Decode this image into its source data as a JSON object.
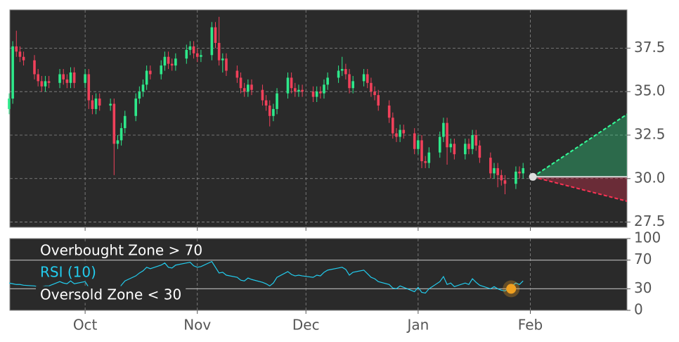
{
  "chart_data": [
    {
      "type": "candlestick",
      "x": [
        -21,
        -20,
        -19,
        -18,
        -17,
        -14,
        -13,
        -12,
        -11,
        -10,
        -7,
        -6,
        -5,
        -4,
        -3,
        0,
        1,
        2,
        3,
        4,
        7,
        8,
        9,
        10,
        11,
        14,
        15,
        16,
        17,
        18,
        21,
        22,
        23,
        24,
        25,
        28,
        29,
        30,
        31,
        32,
        35,
        36,
        37,
        38,
        39,
        42,
        43,
        44,
        45,
        46,
        49,
        50,
        51,
        52,
        53,
        56,
        57,
        58,
        59,
        60,
        63,
        64,
        65,
        66,
        67,
        70,
        71,
        72,
        73,
        74,
        77,
        78,
        79,
        80,
        81,
        84,
        85,
        86,
        87,
        88,
        91,
        92,
        93,
        94,
        95,
        98,
        99,
        100,
        101,
        102,
        105,
        106,
        107,
        108,
        109,
        112,
        113,
        114,
        115,
        116,
        119,
        120,
        121
      ],
      "open": [
        34.0,
        34.6,
        37.6,
        37.3,
        37.0,
        36.8,
        36.0,
        35.6,
        35.3,
        35.6,
        35.5,
        36.0,
        35.7,
        35.5,
        36.1,
        35.5,
        36.0,
        34.5,
        34.0,
        34.6,
        34.2,
        34.3,
        32.0,
        32.2,
        32.9,
        33.6,
        34.6,
        35.0,
        35.4,
        36.2,
        36.0,
        36.5,
        37.0,
        36.6,
        36.5,
        36.9,
        37.4,
        37.6,
        37.2,
        37.0,
        37.1,
        38.7,
        37.8,
        36.8,
        36.9,
        36.2,
        35.8,
        35.2,
        35.0,
        35.4,
        35.1,
        34.5,
        34.2,
        33.6,
        34.0,
        34.9,
        35.8,
        35.2,
        35.0,
        35.1,
        35.0,
        34.7,
        35.0,
        34.9,
        35.4,
        35.8,
        36.2,
        36.3,
        36.0,
        35.2,
        35.6,
        36.0,
        35.5,
        35.0,
        34.8,
        34.2,
        33.5,
        32.6,
        32.4,
        32.8,
        32.6,
        31.7,
        32.2,
        31.0,
        30.9,
        31.5,
        32.4,
        33.2,
        31.8,
        32.0,
        31.4,
        32.0,
        31.7,
        32.5,
        31.9,
        31.2,
        30.3,
        30.6,
        30.2,
        29.9,
        29.7,
        30.4,
        30.3
      ],
      "high": [
        34.9,
        37.9,
        38.5,
        37.6,
        37.3,
        37.1,
        36.3,
        35.9,
        35.9,
        35.9,
        36.3,
        36.3,
        36.0,
        36.4,
        36.4,
        36.3,
        36.3,
        34.8,
        34.9,
        34.9,
        34.6,
        34.6,
        32.5,
        33.2,
        33.9,
        34.9,
        35.3,
        35.7,
        36.5,
        36.5,
        36.8,
        37.3,
        37.3,
        36.9,
        37.2,
        37.7,
        37.9,
        37.9,
        37.5,
        37.4,
        39.0,
        39.0,
        39.3,
        37.2,
        37.2,
        36.5,
        36.1,
        35.5,
        35.7,
        35.7,
        35.4,
        34.8,
        34.5,
        34.3,
        35.2,
        36.1,
        36.1,
        35.5,
        35.4,
        35.4,
        35.3,
        35.3,
        35.3,
        35.7,
        36.1,
        36.5,
        37.0,
        36.6,
        36.3,
        35.9,
        36.3,
        36.3,
        35.8,
        35.3,
        35.1,
        34.5,
        33.8,
        32.9,
        33.1,
        33.1,
        32.9,
        32.5,
        32.5,
        31.3,
        31.8,
        32.7,
        33.5,
        33.5,
        32.3,
        32.3,
        32.3,
        32.3,
        32.8,
        32.8,
        32.2,
        31.5,
        30.9,
        30.9,
        30.5,
        30.2,
        30.7,
        30.7,
        30.9
      ],
      "low": [
        33.7,
        34.3,
        37.0,
        36.7,
        36.5,
        35.7,
        35.3,
        35.0,
        35.0,
        35.2,
        35.2,
        35.4,
        35.2,
        35.2,
        35.2,
        35.2,
        34.0,
        33.7,
        33.7,
        33.9,
        33.9,
        30.2,
        31.7,
        31.9,
        32.6,
        33.3,
        34.3,
        34.7,
        35.1,
        35.7,
        35.7,
        36.2,
        36.3,
        36.2,
        36.2,
        36.6,
        37.1,
        36.9,
        36.7,
        36.7,
        36.8,
        37.5,
        36.5,
        36.1,
        35.9,
        35.5,
        34.9,
        34.7,
        34.7,
        34.8,
        34.2,
        33.9,
        33.0,
        33.3,
        33.7,
        34.6,
        34.9,
        34.7,
        34.7,
        34.7,
        34.4,
        34.4,
        34.6,
        34.6,
        35.1,
        35.5,
        35.9,
        35.7,
        34.9,
        34.9,
        35.3,
        35.2,
        34.7,
        34.5,
        33.9,
        33.2,
        32.3,
        32.1,
        32.1,
        32.3,
        31.4,
        31.4,
        30.6,
        30.6,
        30.6,
        31.2,
        32.1,
        30.8,
        31.5,
        31.1,
        31.1,
        31.4,
        31.4,
        31.6,
        30.9,
        30.0,
        30.0,
        29.5,
        29.6,
        29.1,
        29.4,
        30.0,
        30.0
      ],
      "close": [
        34.6,
        37.6,
        37.3,
        37.0,
        36.8,
        36.0,
        35.6,
        35.3,
        35.6,
        35.5,
        36.0,
        35.7,
        35.5,
        36.1,
        35.5,
        36.0,
        34.5,
        34.0,
        34.6,
        34.2,
        34.3,
        32.0,
        32.2,
        32.9,
        33.6,
        34.6,
        35.0,
        35.4,
        36.2,
        36.0,
        36.5,
        37.0,
        36.6,
        36.5,
        36.9,
        37.4,
        37.6,
        37.2,
        37.0,
        37.1,
        38.7,
        37.8,
        36.8,
        36.9,
        36.2,
        35.8,
        35.2,
        35.0,
        35.4,
        35.1,
        34.5,
        34.2,
        33.6,
        34.0,
        34.9,
        35.8,
        35.2,
        35.0,
        35.1,
        35.0,
        34.7,
        35.0,
        34.9,
        35.4,
        35.8,
        36.2,
        36.3,
        36.0,
        35.2,
        35.6,
        36.0,
        35.5,
        35.0,
        34.8,
        34.2,
        33.5,
        32.6,
        32.4,
        32.8,
        32.6,
        31.7,
        32.2,
        31.0,
        30.9,
        31.5,
        32.4,
        33.2,
        31.8,
        32.0,
        31.4,
        32.0,
        31.7,
        32.5,
        31.9,
        31.2,
        30.3,
        30.6,
        30.2,
        29.9,
        29.7,
        30.4,
        30.3,
        30.6
      ],
      "up_color": "#2ee88a",
      "down_color": "#f0405a",
      "projection": {
        "x": [
          123.7,
          149.7
        ],
        "upper": [
          30.1,
          33.7
        ],
        "middle": [
          30.1,
          30.1
        ],
        "lower": [
          30.1,
          28.7
        ],
        "upper_color": "#33ff99",
        "lower_color": "#ff3355",
        "point_color": "#dddddd"
      },
      "xlim": [
        -20.8,
        149.7
      ],
      "xticks": [
        0,
        31,
        61,
        92,
        123
      ],
      "ylim": [
        27.2,
        39.7
      ],
      "yticks": [
        27.5,
        {
          "value": 30,
          "label": "30.0"
        },
        32.5,
        {
          "value": 35,
          "label": "35.0"
        },
        37.5
      ],
      "grid": true
    },
    {
      "type": "line",
      "x": [
        -21,
        -20,
        -19,
        -18,
        -17,
        -14,
        -13,
        -12,
        -11,
        -10,
        -7,
        -6,
        -5,
        -4,
        -3,
        0,
        1,
        2,
        3,
        4,
        7,
        8,
        9,
        10,
        11,
        14,
        15,
        16,
        17,
        18,
        21,
        22,
        23,
        24,
        25,
        28,
        29,
        30,
        31,
        32,
        35,
        36,
        37,
        38,
        39,
        42,
        43,
        44,
        45,
        46,
        49,
        50,
        51,
        52,
        53,
        56,
        57,
        58,
        59,
        60,
        63,
        64,
        65,
        66,
        67,
        70,
        71,
        72,
        73,
        74,
        77,
        78,
        79,
        80,
        81,
        84,
        85,
        86,
        87,
        88,
        91,
        92,
        93,
        94,
        95,
        98,
        99,
        100,
        101,
        102,
        105,
        106,
        107,
        108,
        109,
        112,
        113,
        114,
        115,
        116,
        119,
        120,
        121
      ],
      "series": [
        {
          "name": "RSI (10)",
          "color": "#22ccee",
          "values": [
            38,
            37,
            36,
            36,
            35,
            34,
            33,
            33,
            34,
            34,
            40,
            38,
            37,
            41,
            37,
            40,
            32,
            30,
            33,
            31,
            32,
            24,
            27,
            35,
            41,
            48,
            52,
            55,
            60,
            58,
            63,
            66,
            60,
            59,
            63,
            66,
            67,
            62,
            60,
            61,
            68,
            60,
            52,
            53,
            49,
            46,
            42,
            41,
            45,
            43,
            39,
            37,
            34,
            38,
            46,
            54,
            50,
            48,
            49,
            48,
            46,
            49,
            48,
            53,
            56,
            59,
            60,
            57,
            49,
            53,
            56,
            51,
            46,
            44,
            40,
            36,
            31,
            30,
            34,
            32,
            26,
            32,
            25,
            24,
            30,
            40,
            47,
            36,
            38,
            33,
            38,
            36,
            44,
            39,
            35,
            30,
            33,
            30,
            28,
            27,
            38,
            36,
            41
          ]
        }
      ],
      "levels": [
        {
          "name": "Overbought Zone > 70",
          "value": 70
        },
        {
          "name": "Oversold Zone < 30",
          "value": 30
        }
      ],
      "marker": {
        "x": 117.7,
        "value": 30,
        "color": "#f0a020"
      },
      "xlim": [
        -20.8,
        149.7
      ],
      "xticks": [
        {
          "value": 0,
          "label": "Oct"
        },
        {
          "value": 31,
          "label": "Nov"
        },
        {
          "value": 61,
          "label": "Dec"
        },
        {
          "value": 92,
          "label": "Jan"
        },
        {
          "value": 123,
          "label": "Feb"
        }
      ],
      "ylim": [
        0,
        100
      ],
      "yticks": [
        0,
        30,
        70,
        100
      ],
      "grid": true
    }
  ]
}
